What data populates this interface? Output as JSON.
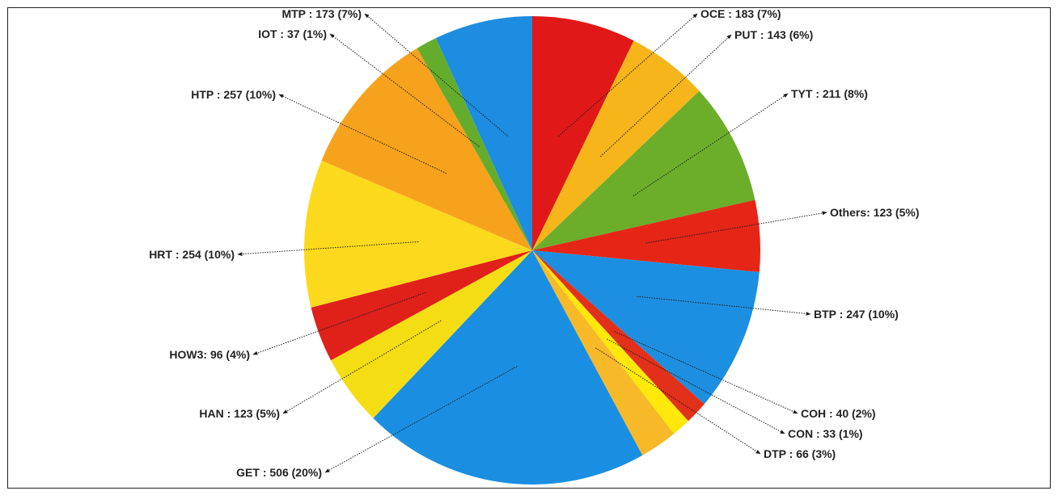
{
  "chart_data": {
    "type": "pie",
    "title": "",
    "slices": [
      {
        "name": "OCE",
        "value": 183,
        "percent": "7%",
        "label": "OCE : 183 (7%)",
        "color": "#e11818"
      },
      {
        "name": "PUT",
        "value": 143,
        "percent": "6%",
        "label": "PUT : 143 (6%)",
        "color": "#f6b51b"
      },
      {
        "name": "TYT",
        "value": 211,
        "percent": "8%",
        "label": "TYT : 211 (8%)",
        "color": "#6cae2a"
      },
      {
        "name": "Others",
        "value": 123,
        "percent": "5%",
        "label": "Others: 123 (5%)",
        "color": "#e52617"
      },
      {
        "name": "BTP",
        "value": 247,
        "percent": "10%",
        "label": "BTP : 247 (10%)",
        "color": "#1d8fe0"
      },
      {
        "name": "COH",
        "value": 40,
        "percent": "2%",
        "label": "COH : 40 (2%)",
        "color": "#e3301a"
      },
      {
        "name": "CON",
        "value": 33,
        "percent": "1%",
        "label": "CON : 33 (1%)",
        "color": "#ffe80a"
      },
      {
        "name": "DTP",
        "value": 66,
        "percent": "3%",
        "label": "DTP : 66 (3%)",
        "color": "#f8b928"
      },
      {
        "name": "GET",
        "value": 506,
        "percent": "20%",
        "label": "GET : 506 (20%)",
        "color": "#1a8fe2"
      },
      {
        "name": "HAN",
        "value": 123,
        "percent": "5%",
        "label": "HAN : 123 (5%)",
        "color": "#f5dd14"
      },
      {
        "name": "HOW3",
        "value": 96,
        "percent": "4%",
        "label": "HOW3: 96 (4%)",
        "color": "#e0211a"
      },
      {
        "name": "HRT",
        "value": 254,
        "percent": "10%",
        "label": "HRT : 254 (10%)",
        "color": "#fcd91c"
      },
      {
        "name": "HTP",
        "value": 257,
        "percent": "10%",
        "label": "HTP : 257 (10%)",
        "color": "#f7a21c"
      },
      {
        "name": "IOT",
        "value": 37,
        "percent": "1%",
        "label": "IOT : 37 (1%)",
        "color": "#64ad2c"
      },
      {
        "name": "MTP",
        "value": 173,
        "percent": "7%",
        "label": "MTP : 173 (7%)",
        "color": "#1c8de0"
      }
    ],
    "start": "12 o'clock",
    "direction": "clockwise",
    "legend": "none"
  }
}
